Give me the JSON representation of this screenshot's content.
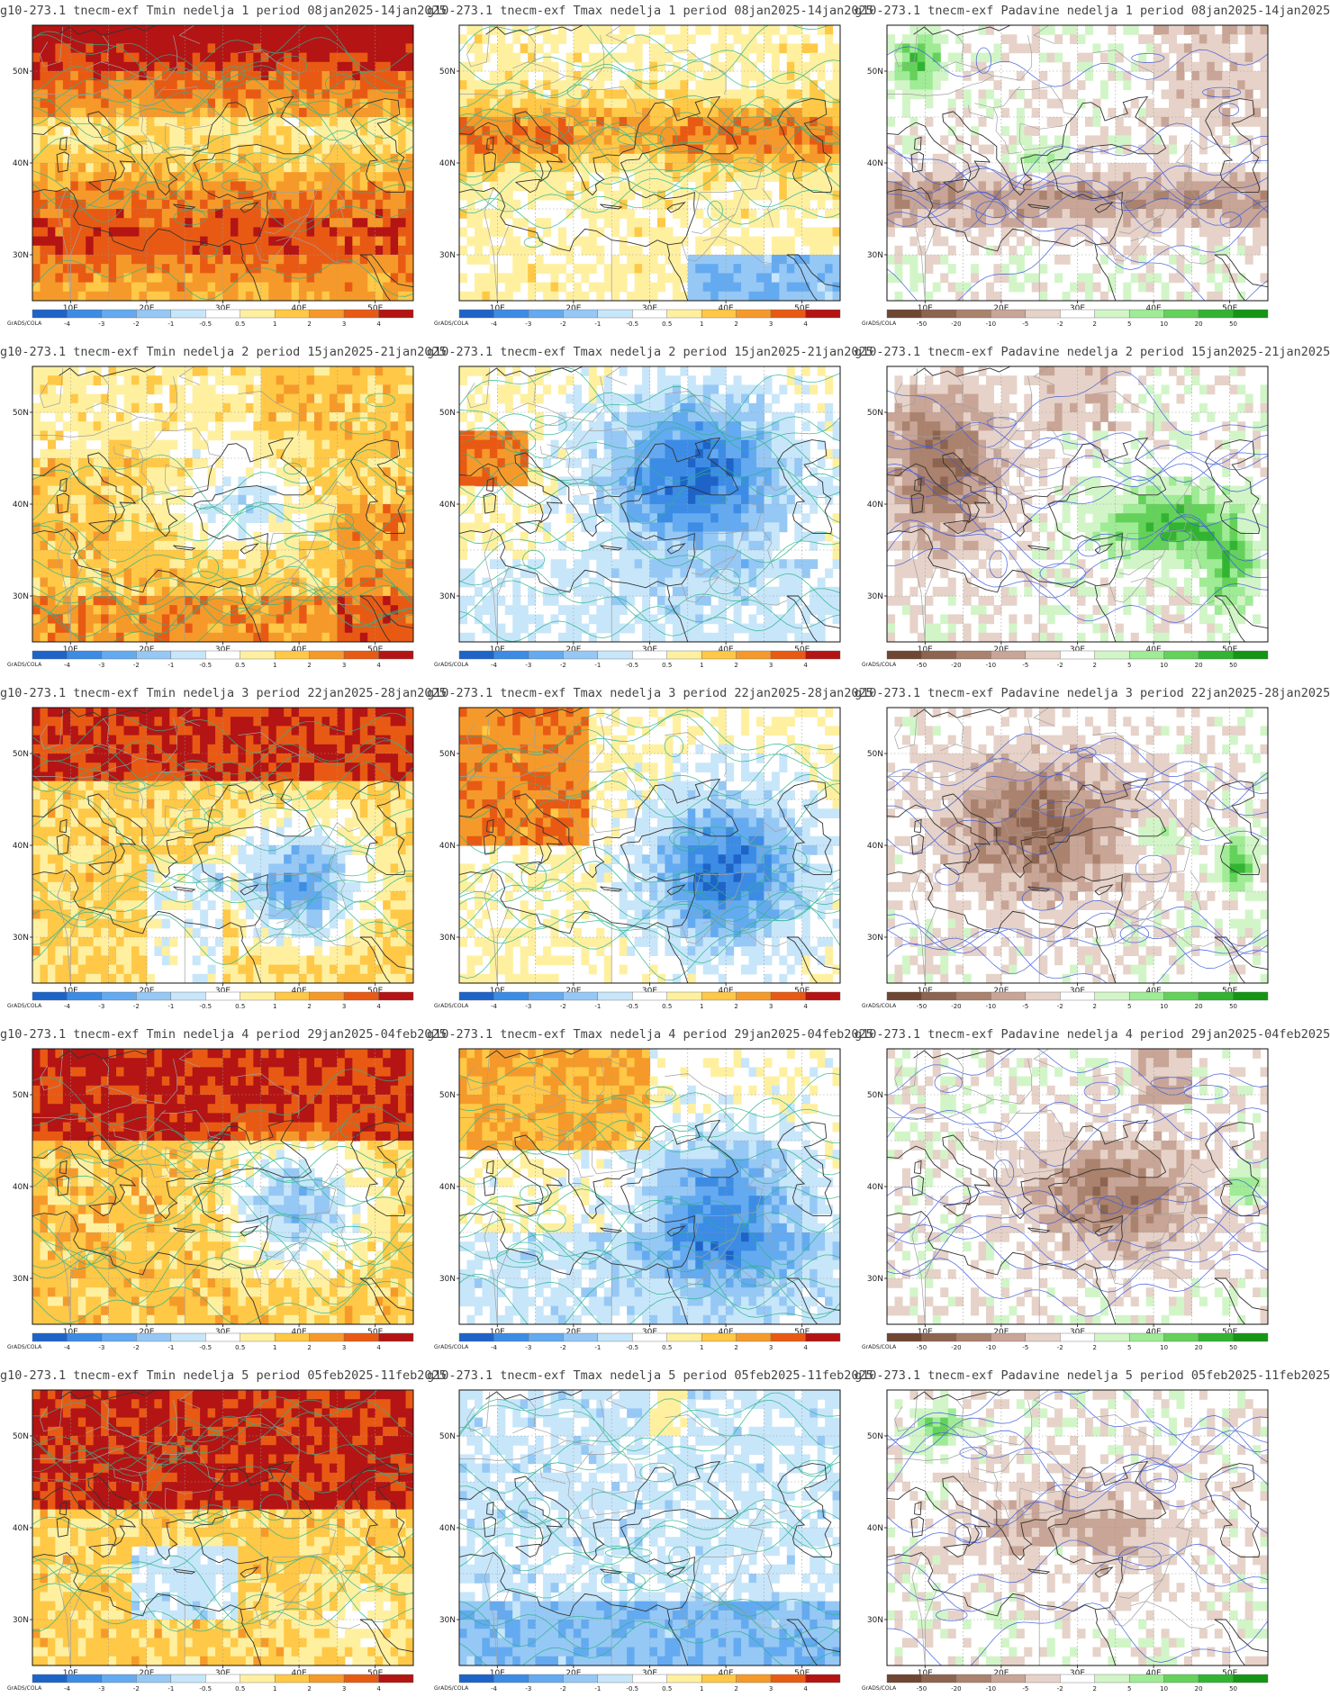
{
  "colorbars": {
    "temperature": {
      "labels": [
        "-4",
        "-3",
        "-2",
        "-1",
        "-0.5",
        "0.5",
        "1",
        "2",
        "3",
        "4"
      ],
      "colors": [
        "#1e64c8",
        "#3c8ce6",
        "#64aaf0",
        "#96c8f5",
        "#c8e6fa",
        "#ffffff",
        "#fff0a0",
        "#ffc846",
        "#f59a2a",
        "#e85a14",
        "#b41414"
      ]
    },
    "precipitation": {
      "labels": [
        "-50",
        "-20",
        "-10",
        "-5",
        "-2",
        "2",
        "5",
        "10",
        "20",
        "50"
      ],
      "colors": [
        "#6e4632",
        "#8c6450",
        "#aa826e",
        "#c8a596",
        "#e6d2c8",
        "#ffffff",
        "#d2f5c8",
        "#a0eb96",
        "#64d25a",
        "#32b432",
        "#149614"
      ]
    }
  },
  "credit": "GrADS/COLA",
  "axes": {
    "lat_labels": [
      "50N",
      "40N",
      "30N"
    ],
    "lon_labels": [
      "10E",
      "20E",
      "30E",
      "40E",
      "50E"
    ]
  },
  "contour_colors": {
    "temperature": "#2ab48c",
    "precipitation": "#3c5adc"
  },
  "panels": [
    {
      "title": "g10-273.1 tnecm-exf Tmin nedelja 1 period 08jan2025-14jan2025",
      "variable": "Tmin",
      "week": 1,
      "scheme": "temperature"
    },
    {
      "title": "g10-273.1 tnecm-exf Tmax nedelja 1 period 08jan2025-14jan2025",
      "variable": "Tmax",
      "week": 1,
      "scheme": "temperature"
    },
    {
      "title": "g10-273.1 tnecm-exf Padavine nedelja 1 period 08jan2025-14jan2025",
      "variable": "Padavine",
      "week": 1,
      "scheme": "precipitation"
    },
    {
      "title": "g10-273.1 tnecm-exf Tmin nedelja 2 period 15jan2025-21jan2025",
      "variable": "Tmin",
      "week": 2,
      "scheme": "temperature"
    },
    {
      "title": "g10-273.1 tnecm-exf Tmax nedelja 2 period 15jan2025-21jan2025",
      "variable": "Tmax",
      "week": 2,
      "scheme": "temperature"
    },
    {
      "title": "g10-273.1 tnecm-exf Padavine nedelja 2 period 15jan2025-21jan2025",
      "variable": "Padavine",
      "week": 2,
      "scheme": "precipitation"
    },
    {
      "title": "g10-273.1 tnecm-exf Tmin nedelja 3 period 22jan2025-28jan2025",
      "variable": "Tmin",
      "week": 3,
      "scheme": "temperature"
    },
    {
      "title": "g10-273.1 tnecm-exf Tmax nedelja 3 period 22jan2025-28jan2025",
      "variable": "Tmax",
      "week": 3,
      "scheme": "temperature"
    },
    {
      "title": "g10-273.1 tnecm-exf Padavine nedelja 3 period 22jan2025-28jan2025",
      "variable": "Padavine",
      "week": 3,
      "scheme": "precipitation"
    },
    {
      "title": "g10-273.1 tnecm-exf Tmin nedelja 4 period 29jan2025-04feb2025",
      "variable": "Tmin",
      "week": 4,
      "scheme": "temperature"
    },
    {
      "title": "g10-273.1 tnecm-exf Tmax nedelja 4 period 29jan2025-04feb2025",
      "variable": "Tmax",
      "week": 4,
      "scheme": "temperature"
    },
    {
      "title": "g10-273.1 tnecm-exf Padavine nedelja 4 period 29jan2025-04feb2025",
      "variable": "Padavine",
      "week": 4,
      "scheme": "precipitation"
    },
    {
      "title": "g10-273.1 tnecm-exf Tmin nedelja 5 period 05feb2025-11feb2025",
      "variable": "Tmin",
      "week": 5,
      "scheme": "temperature"
    },
    {
      "title": "g10-273.1 tnecm-exf Tmax nedelja 5 period 05feb2025-11feb2025",
      "variable": "Tmax",
      "week": 5,
      "scheme": "temperature"
    },
    {
      "title": "g10-273.1 tnecm-exf Padavine nedelja 5 period 05feb2025-11feb2025",
      "variable": "Padavine",
      "week": 5,
      "scheme": "precipitation"
    }
  ]
}
